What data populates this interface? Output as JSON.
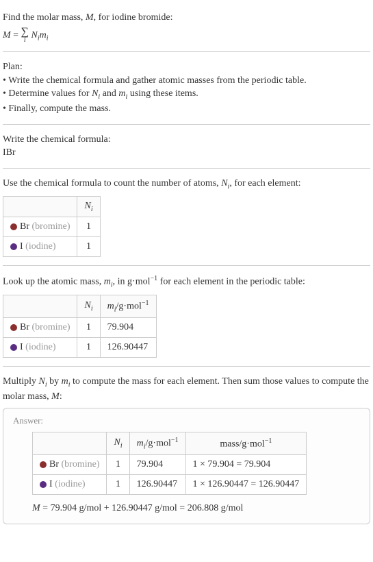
{
  "intro": {
    "line1_prefix": "Find the molar mass, ",
    "line1_M": "M",
    "line1_suffix": ", for iodine bromide:",
    "formula_lhs": "M",
    "formula_eq": " = ",
    "formula_sigma": "∑",
    "formula_sigma_sub": "i",
    "formula_rhs": " N",
    "formula_Ni_sub": "i",
    "formula_mi": "m",
    "formula_mi_sub": "i"
  },
  "plan": {
    "heading": "Plan:",
    "b1_prefix": "• Write the chemical formula and gather atomic masses from the periodic table.",
    "b2_prefix": "• Determine values for ",
    "b2_Ni": "N",
    "b2_Ni_sub": "i",
    "b2_mid": " and ",
    "b2_mi": "m",
    "b2_mi_sub": "i",
    "b2_suffix": " using these items.",
    "b3": "• Finally, compute the mass."
  },
  "chem": {
    "heading": "Write the chemical formula:",
    "formula": "IBr"
  },
  "count": {
    "heading_prefix": "Use the chemical formula to count the number of atoms, ",
    "heading_N": "N",
    "heading_N_sub": "i",
    "heading_suffix": ", for each element:",
    "header_Ni": "N",
    "header_Ni_sub": "i",
    "rows": [
      {
        "color": "#8b2e2e",
        "sym": "Br",
        "name": " (bromine)",
        "n": "1"
      },
      {
        "color": "#5a2d82",
        "sym": "I",
        "name": " (iodine)",
        "n": "1"
      }
    ]
  },
  "lookup": {
    "heading_prefix": "Look up the atomic mass, ",
    "heading_m": "m",
    "heading_m_sub": "i",
    "heading_mid": ", in g·mol",
    "heading_exp": "−1",
    "heading_suffix": " for each element in the periodic table:",
    "header_Ni": "N",
    "header_Ni_sub": "i",
    "header_mi": "m",
    "header_mi_sub": "i",
    "header_unit": "/g·mol",
    "header_unit_exp": "−1",
    "rows": [
      {
        "color": "#8b2e2e",
        "sym": "Br",
        "name": " (bromine)",
        "n": "1",
        "m": "79.904"
      },
      {
        "color": "#5a2d82",
        "sym": "I",
        "name": " (iodine)",
        "n": "1",
        "m": "126.90447"
      }
    ]
  },
  "multiply": {
    "line_prefix": "Multiply ",
    "N": "N",
    "N_sub": "i",
    "mid1": " by ",
    "m": "m",
    "m_sub": "i",
    "mid2": " to compute the mass for each element. Then sum those values to compute the molar mass, ",
    "M": "M",
    "suffix": ":"
  },
  "answer": {
    "label": "Answer:",
    "header_Ni": "N",
    "header_Ni_sub": "i",
    "header_mi": "m",
    "header_mi_sub": "i",
    "header_unit": "/g·mol",
    "header_unit_exp": "−1",
    "header_mass": "mass/g·mol",
    "header_mass_exp": "−1",
    "rows": [
      {
        "color": "#8b2e2e",
        "sym": "Br",
        "name": " (bromine)",
        "n": "1",
        "m": "79.904",
        "mass": "1 × 79.904 = 79.904"
      },
      {
        "color": "#5a2d82",
        "sym": "I",
        "name": " (iodine)",
        "n": "1",
        "m": "126.90447",
        "mass": "1 × 126.90447 = 126.90447"
      }
    ],
    "result_M": "M",
    "result_text": " = 79.904 g/mol + 126.90447 g/mol = 206.808 g/mol"
  },
  "colors": {
    "border": "#cccccc",
    "gray_text": "#999999",
    "answer_bg": "#fdfdfd"
  }
}
